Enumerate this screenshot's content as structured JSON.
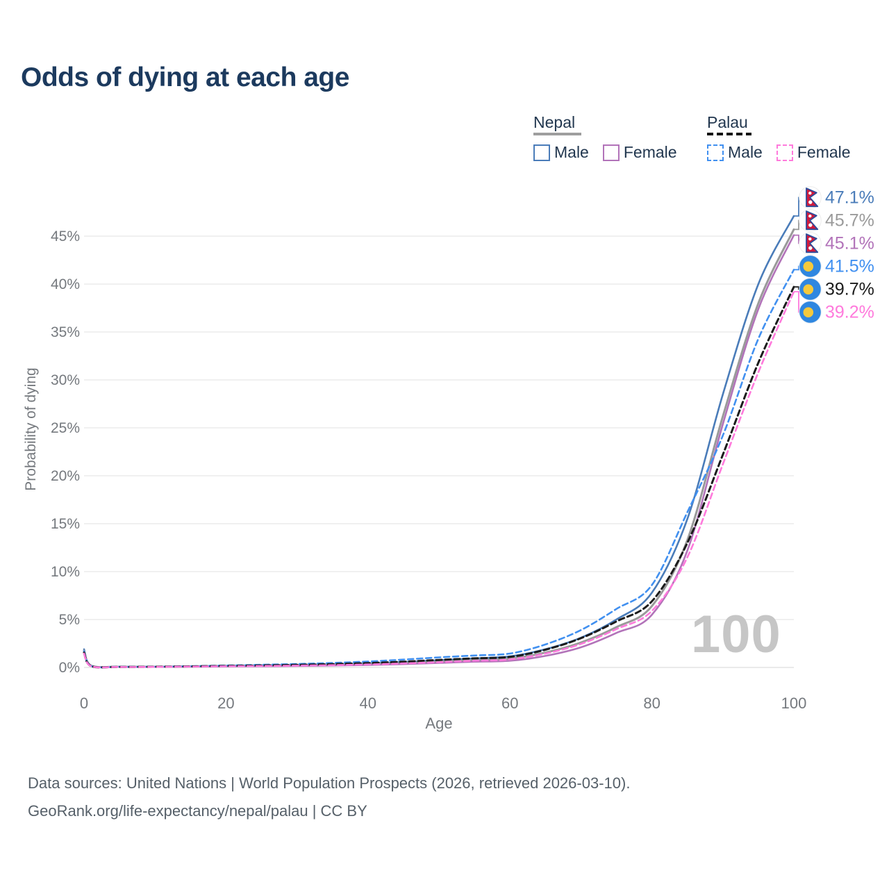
{
  "title": "Odds of dying at each age",
  "watermark": "100",
  "legend": {
    "groups": [
      {
        "label": "Nepal",
        "line_style": "solid",
        "underline_color": "#9e9e9e",
        "items": [
          {
            "label": "Male",
            "color": "#4A7CB9",
            "dashed": false
          },
          {
            "label": "Female",
            "color": "#B273B9",
            "dashed": false
          }
        ]
      },
      {
        "label": "Palau",
        "line_style": "dashed",
        "underline_color": "#141414",
        "items": [
          {
            "label": "Male",
            "color": "#4190F0",
            "dashed": true
          },
          {
            "label": "Female",
            "color": "#FF7ADC",
            "dashed": true
          }
        ]
      }
    ]
  },
  "footer": {
    "line1": "Data sources: United Nations | World Population Prospects (2026, retrieved 2026-03-10).",
    "line2": "GeoRank.org/life-expectancy/nepal/palau | CC BY"
  },
  "chart_data": {
    "type": "line",
    "title": "Odds of dying at each age",
    "xlabel": "Age",
    "ylabel": "Probability of dying",
    "xlim": [
      0,
      100
    ],
    "ylim": [
      0,
      47.5
    ],
    "grid": true,
    "xticks": [
      0,
      20,
      40,
      60,
      80,
      100
    ],
    "yticks": [
      0,
      5,
      10,
      15,
      20,
      25,
      30,
      35,
      40,
      45
    ],
    "x": [
      0,
      1,
      5,
      10,
      15,
      20,
      25,
      30,
      35,
      40,
      45,
      50,
      55,
      60,
      65,
      70,
      75,
      80,
      85,
      90,
      95,
      100
    ],
    "series": [
      {
        "name": "Nepal Male",
        "country": "Nepal",
        "sex": "Male",
        "flag": "nepal",
        "color": "#4A7CB9",
        "dashed": false,
        "width": 2.6,
        "end_value": 47.1,
        "end_label": "47.1%",
        "values": [
          1.9,
          0.2,
          0.08,
          0.08,
          0.12,
          0.17,
          0.21,
          0.26,
          0.33,
          0.43,
          0.57,
          0.75,
          0.95,
          1.15,
          1.9,
          3.1,
          5.0,
          7.8,
          15.5,
          28.5,
          40.0,
          47.1
        ]
      },
      {
        "name": "Nepal Both sexes",
        "country": "Nepal",
        "sex": "Both",
        "flag": "nepal",
        "color": "#9A9A9A",
        "dashed": false,
        "width": 3,
        "end_value": 45.7,
        "end_label": "45.7%",
        "values": [
          1.75,
          0.18,
          0.07,
          0.07,
          0.1,
          0.14,
          0.17,
          0.21,
          0.26,
          0.34,
          0.45,
          0.6,
          0.76,
          0.92,
          1.55,
          2.6,
          4.2,
          6.4,
          13.3,
          26.2,
          38.0,
          45.7
        ]
      },
      {
        "name": "Nepal Female",
        "country": "Nepal",
        "sex": "Female",
        "flag": "nepal",
        "color": "#B273B9",
        "dashed": false,
        "width": 2.6,
        "end_value": 45.1,
        "end_label": "45.1%",
        "values": [
          1.6,
          0.16,
          0.06,
          0.06,
          0.08,
          0.11,
          0.13,
          0.16,
          0.2,
          0.26,
          0.35,
          0.47,
          0.6,
          0.7,
          1.2,
          2.1,
          3.6,
          5.5,
          12.2,
          25.4,
          37.4,
          45.1
        ]
      },
      {
        "name": "Palau Male",
        "country": "Palau",
        "sex": "Male",
        "flag": "palau",
        "color": "#4190F0",
        "dashed": true,
        "width": 2.6,
        "end_value": 41.5,
        "end_label": "41.5%",
        "values": [
          1.7,
          0.15,
          0.07,
          0.08,
          0.13,
          0.2,
          0.28,
          0.36,
          0.47,
          0.62,
          0.82,
          1.05,
          1.25,
          1.45,
          2.4,
          3.9,
          6.1,
          8.6,
          16.2,
          24.2,
          34.3,
          41.5
        ]
      },
      {
        "name": "Palau Both sexes",
        "country": "Palau",
        "sex": "Both",
        "flag": "palau",
        "color": "#1C1C1C",
        "dashed": true,
        "width": 3,
        "end_value": 39.7,
        "end_label": "39.7%",
        "values": [
          1.55,
          0.14,
          0.06,
          0.07,
          0.11,
          0.16,
          0.21,
          0.27,
          0.35,
          0.46,
          0.6,
          0.78,
          0.95,
          1.1,
          1.85,
          3.05,
          4.8,
          6.9,
          13.0,
          22.2,
          31.8,
          39.7
        ]
      },
      {
        "name": "Palau Female",
        "country": "Palau",
        "sex": "Female",
        "flag": "palau",
        "color": "#FF7ADC",
        "dashed": true,
        "width": 2.6,
        "end_value": 39.2,
        "end_label": "39.2%",
        "values": [
          1.45,
          0.13,
          0.05,
          0.06,
          0.09,
          0.12,
          0.15,
          0.19,
          0.24,
          0.31,
          0.42,
          0.55,
          0.7,
          0.83,
          1.45,
          2.45,
          4.0,
          5.9,
          11.5,
          21.2,
          30.8,
          39.2
        ]
      }
    ],
    "legend_position": "top-right",
    "flag_colors": {
      "nepal_crimson": "#D0193C",
      "nepal_border_blue": "#2B4D9B",
      "palau_blue": "#2F87E0",
      "palau_yellow": "#F5C93C"
    }
  }
}
